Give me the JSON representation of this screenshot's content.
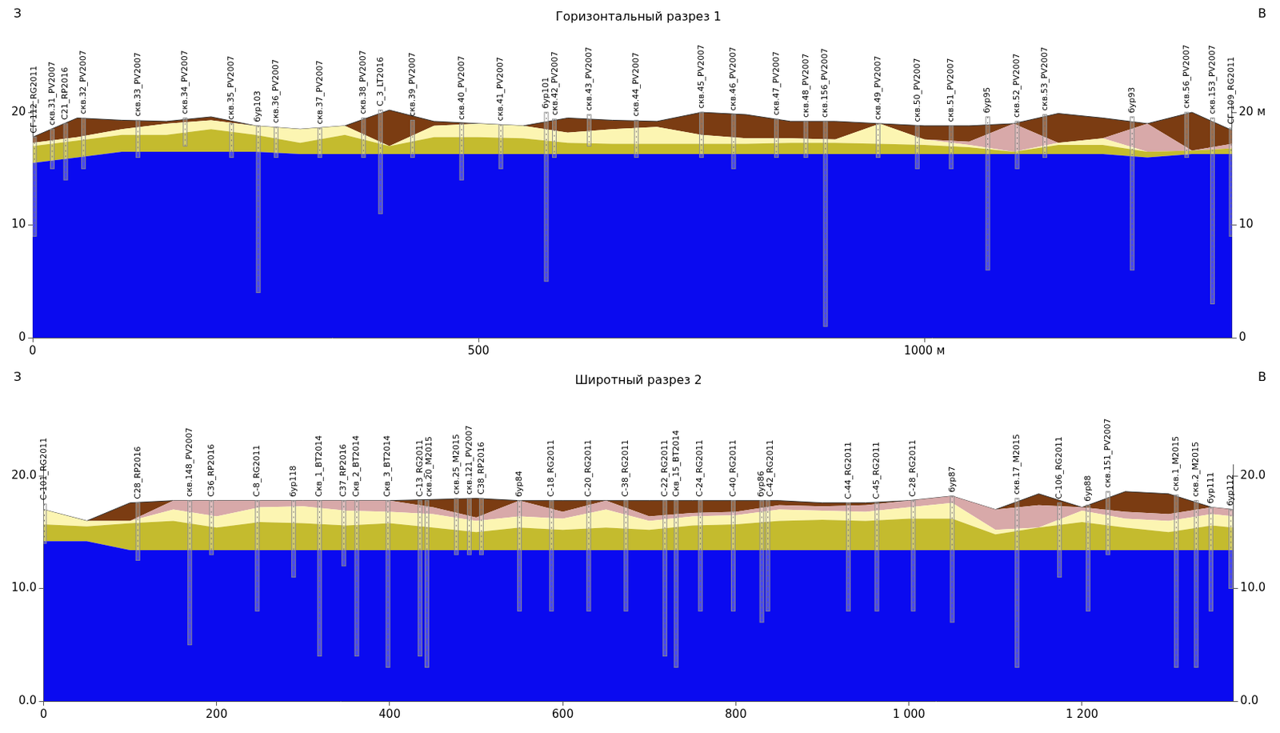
{
  "chart_data": [
    {
      "type": "area",
      "title": "Горизонтальный разрез 1",
      "left_label": "З",
      "right_label": "В",
      "stacked": true,
      "grid": false,
      "x": [
        0,
        50,
        100,
        150,
        200,
        250,
        300,
        350,
        400,
        450,
        500,
        550,
        600,
        650,
        700,
        750,
        800,
        850,
        900,
        950,
        1000,
        1050,
        1100,
        1150,
        1200,
        1250,
        1300,
        1345
      ],
      "series": [
        {
          "color": "#0a0af0",
          "values": [
            15.5,
            16,
            16.5,
            16.5,
            16.5,
            16.5,
            16.3,
            16.3,
            16.3,
            16.3,
            16.3,
            16.3,
            16.3,
            16.3,
            16.3,
            16.3,
            16.3,
            16.3,
            16.3,
            16.3,
            16.3,
            16.3,
            16.3,
            16.3,
            16.3,
            16.0,
            16.3,
            16.3
          ]
        },
        {
          "color": "#c4bb2e",
          "values": [
            1.5,
            1.5,
            1.5,
            1.5,
            2.0,
            1.5,
            1.0,
            1.7,
            0.7,
            1.5,
            1.5,
            1.4,
            1.0,
            0.9,
            0.9,
            0.9,
            0.9,
            1.0,
            1.0,
            0.9,
            0.8,
            0.6,
            0.2,
            0.8,
            0.8,
            0.5,
            0.3,
            0.5
          ]
        },
        {
          "color": "#fcf5b2",
          "values": [
            0.3,
            0.3,
            0.5,
            1.0,
            0.8,
            0.8,
            1.2,
            0.8,
            0,
            1.0,
            1.2,
            1.1,
            0.9,
            1.3,
            1.5,
            0.8,
            0.5,
            0.4,
            0.3,
            1.8,
            0.5,
            0.2,
            0,
            0.2,
            0.6,
            0,
            0,
            0
          ]
        },
        {
          "color": "#d8a9a9",
          "values": [
            0,
            0,
            0,
            0,
            0,
            0,
            0,
            0,
            0,
            0,
            0,
            0,
            0,
            0,
            0,
            0,
            0,
            0,
            0,
            0,
            0,
            0.3,
            2.5,
            0,
            0,
            2.5,
            0,
            0.4
          ]
        },
        {
          "color": "#7b3c12",
          "values": [
            0.5,
            1.7,
            0.8,
            0.2,
            0.3,
            0,
            0,
            0,
            3.2,
            0.4,
            0,
            0,
            1.3,
            0.8,
            0.5,
            2.0,
            2.1,
            1.5,
            1.6,
            0,
            1.2,
            1.4,
            0,
            2.6,
            1.8,
            0,
            3.4,
            1.2
          ]
        }
      ],
      "xlim": [
        0,
        1345
      ],
      "xticks": [
        0,
        500,
        {
          "value": 1000,
          "label": "1000 м"
        }
      ],
      "ylim": [
        0,
        21
      ],
      "yticks": [
        0,
        10,
        20
      ],
      "y2lim": [
        0,
        21
      ],
      "y2ticks": [
        0,
        10,
        {
          "value": 20,
          "label": "20 м"
        }
      ],
      "boreholes": [
        {
          "name": "СГ-112_RG2011",
          "x": 2,
          "top": 17.8,
          "bottom": 9
        },
        {
          "name": "скв.31_PV2007",
          "x": 22,
          "top": 18.5,
          "bottom": 15
        },
        {
          "name": "С21_RP2016",
          "x": 37,
          "top": 19,
          "bottom": 14
        },
        {
          "name": "скв.32_PV2007",
          "x": 57,
          "top": 19.5,
          "bottom": 15
        },
        {
          "name": "скв.33_PV2007",
          "x": 118,
          "top": 19.3,
          "bottom": 16
        },
        {
          "name": "скв.34_PV2007",
          "x": 171,
          "top": 19.5,
          "bottom": 17
        },
        {
          "name": "скв.35_PV2007",
          "x": 223,
          "top": 19,
          "bottom": 16
        },
        {
          "name": "бур103",
          "x": 253,
          "top": 18.8,
          "bottom": 4
        },
        {
          "name": "скв.36_PV2007",
          "x": 273,
          "top": 18.7,
          "bottom": 16
        },
        {
          "name": "скв.37_PV2007",
          "x": 322,
          "top": 18.6,
          "bottom": 16
        },
        {
          "name": "скв.38_PV2007",
          "x": 371,
          "top": 19.5,
          "bottom": 16
        },
        {
          "name": "С_3_LT2016",
          "x": 390,
          "top": 20.2,
          "bottom": 11
        },
        {
          "name": "скв.39_PV2007",
          "x": 426,
          "top": 19.3,
          "bottom": 16
        },
        {
          "name": "скв.40_PV2007",
          "x": 481,
          "top": 19,
          "bottom": 14
        },
        {
          "name": "скв.41_PV2007",
          "x": 525,
          "top": 18.9,
          "bottom": 15
        },
        {
          "name": "бур101",
          "x": 576,
          "top": 20,
          "bottom": 5
        },
        {
          "name": "скв.42_PV2007",
          "x": 585,
          "top": 19.4,
          "bottom": 16
        },
        {
          "name": "скв.43_PV2007",
          "x": 624,
          "top": 19.8,
          "bottom": 17
        },
        {
          "name": "скв.44_PV2007",
          "x": 677,
          "top": 19.3,
          "bottom": 16
        },
        {
          "name": "скв.45_PV2007",
          "x": 750,
          "top": 20,
          "bottom": 16
        },
        {
          "name": "скв.46_PV2007",
          "x": 786,
          "top": 19.8,
          "bottom": 15
        },
        {
          "name": "скв.47_PV2007",
          "x": 834,
          "top": 19.4,
          "bottom": 16
        },
        {
          "name": "скв.48_PV2007",
          "x": 867,
          "top": 19.2,
          "bottom": 16
        },
        {
          "name": "скв.156_PV2007",
          "x": 889,
          "top": 19.2,
          "bottom": 1
        },
        {
          "name": "скв.49_PV2007",
          "x": 948,
          "top": 19,
          "bottom": 16
        },
        {
          "name": "скв.50_PV2007",
          "x": 992,
          "top": 18.8,
          "bottom": 15
        },
        {
          "name": "скв.51_PV2007",
          "x": 1030,
          "top": 18.8,
          "bottom": 15
        },
        {
          "name": "бур95",
          "x": 1071,
          "top": 19.6,
          "bottom": 6
        },
        {
          "name": "скв.52_PV2007",
          "x": 1104,
          "top": 19.2,
          "bottom": 15
        },
        {
          "name": "скв.53_PV2007",
          "x": 1135,
          "top": 19.8,
          "bottom": 16
        },
        {
          "name": "бур93",
          "x": 1233,
          "top": 19.6,
          "bottom": 6
        },
        {
          "name": "скв.56_PV2007",
          "x": 1294,
          "top": 20,
          "bottom": 16
        },
        {
          "name": "скв.153_PV2007",
          "x": 1323,
          "top": 19.5,
          "bottom": 3
        },
        {
          "name": "СГ-109_RG2011",
          "x": 1344,
          "top": 18.6,
          "bottom": 9
        }
      ]
    },
    {
      "type": "area",
      "title": "Широтный разрез 2",
      "left_label": "З",
      "right_label": "В",
      "stacked": true,
      "grid": false,
      "x": [
        0,
        50,
        100,
        150,
        200,
        250,
        300,
        350,
        400,
        450,
        500,
        550,
        600,
        650,
        700,
        750,
        800,
        850,
        900,
        950,
        1000,
        1050,
        1100,
        1150,
        1200,
        1250,
        1300,
        1350,
        1375
      ],
      "series": [
        {
          "color": "#0a0af0",
          "values": [
            14.2,
            14.2,
            13.4,
            13.4,
            13.4,
            13.4,
            13.4,
            13.4,
            13.4,
            13.4,
            13.4,
            13.4,
            13.4,
            13.4,
            13.4,
            13.4,
            13.4,
            13.4,
            13.4,
            13.4,
            13.4,
            13.4,
            13.4,
            13.4,
            13.4,
            13.4,
            13.4,
            13.4,
            13.4
          ]
        },
        {
          "color": "#c4bb2e",
          "values": [
            1.5,
            1.3,
            2.4,
            2.6,
            2.0,
            2.5,
            2.4,
            2.2,
            2.4,
            2.0,
            1.6,
            2.0,
            1.8,
            2.0,
            1.8,
            2.2,
            2.3,
            2.6,
            2.7,
            2.6,
            2.8,
            2.8,
            1.4,
            2.0,
            2.5,
            2.0,
            1.6,
            2.2,
            2.0
          ]
        },
        {
          "color": "#fcf5b2",
          "values": [
            1.3,
            0.5,
            0.2,
            1.0,
            1.0,
            1.3,
            1.5,
            1.3,
            1.0,
            1.2,
            1.0,
            1.0,
            1.0,
            1.6,
            0.8,
            0.8,
            0.8,
            1.0,
            0.8,
            0.8,
            1.0,
            1.4,
            0.4,
            0,
            1.0,
            0.8,
            1.0,
            1.0,
            1.0
          ]
        },
        {
          "color": "#d8a9a9",
          "values": [
            0,
            0,
            0,
            0.8,
            1.4,
            0.6,
            0.5,
            0.9,
            1.0,
            0.6,
            0.3,
            1.4,
            0.6,
            0.8,
            0.4,
            0.3,
            0.3,
            0.4,
            0.4,
            0.6,
            0.6,
            0.6,
            1.8,
            2.0,
            0.3,
            0.6,
            0.6,
            0.6,
            0.6
          ]
        },
        {
          "color": "#7b3c12",
          "values": [
            0,
            0,
            1.6,
            0,
            0,
            0,
            0,
            0,
            0,
            0.7,
            1.7,
            0,
            1.0,
            0,
            1.4,
            1.1,
            1.0,
            0.4,
            0.3,
            0.2,
            0,
            0,
            0,
            1.0,
            0,
            1.8,
            1.8,
            0,
            0
          ]
        }
      ],
      "xlim": [
        0,
        1375
      ],
      "xticks": [
        0,
        200,
        400,
        600,
        800,
        {
          "value": 1000,
          "label": "1 000"
        },
        {
          "value": 1200,
          "label": "1 200"
        }
      ],
      "ylim": [
        0,
        21
      ],
      "yticks": [
        {
          "value": 0,
          "label": "0.0"
        },
        {
          "value": 10,
          "label": "10.0"
        },
        {
          "value": 20,
          "label": "20.0"
        }
      ],
      "y2lim": [
        0,
        21
      ],
      "y2ticks": [
        {
          "value": 0,
          "label": "0.0"
        },
        {
          "value": 10,
          "label": "10.0"
        },
        {
          "value": 20,
          "label": "20.0"
        }
      ],
      "boreholes": [
        {
          "name": "С-101_RG2011",
          "x": 1,
          "top": 17.5,
          "bottom": 14
        },
        {
          "name": "С28_RP2016",
          "x": 109,
          "top": 17.6,
          "bottom": 12.5
        },
        {
          "name": "скв.148_PV2007",
          "x": 169,
          "top": 17.8,
          "bottom": 5
        },
        {
          "name": "С36_RP2016",
          "x": 194,
          "top": 17.8,
          "bottom": 13
        },
        {
          "name": "С-8_RG2011",
          "x": 247,
          "top": 17.8,
          "bottom": 8
        },
        {
          "name": "бур118",
          "x": 289,
          "top": 17.8,
          "bottom": 11
        },
        {
          "name": "Скв_1_BT2014",
          "x": 319,
          "top": 17.8,
          "bottom": 4
        },
        {
          "name": "С37_RP2016",
          "x": 347,
          "top": 17.8,
          "bottom": 12
        },
        {
          "name": "Скв_2_BT2014",
          "x": 362,
          "top": 17.8,
          "bottom": 4
        },
        {
          "name": "Скв_3_BT2014",
          "x": 398,
          "top": 17.8,
          "bottom": 3
        },
        {
          "name": "С-13_RG2011",
          "x": 435,
          "top": 17.8,
          "bottom": 4
        },
        {
          "name": "скв.20_M2015",
          "x": 443,
          "top": 17.8,
          "bottom": 3
        },
        {
          "name": "скв.25_M2015",
          "x": 477,
          "top": 18,
          "bottom": 13
        },
        {
          "name": "скв.121_PV2007",
          "x": 492,
          "top": 18,
          "bottom": 13
        },
        {
          "name": "С38_RP2016",
          "x": 506,
          "top": 18,
          "bottom": 13
        },
        {
          "name": "бур84",
          "x": 550,
          "top": 17.8,
          "bottom": 8
        },
        {
          "name": "С-18_RG2011",
          "x": 587,
          "top": 17.8,
          "bottom": 8
        },
        {
          "name": "С-20_RG2011",
          "x": 630,
          "top": 17.8,
          "bottom": 8
        },
        {
          "name": "С-38_RG2011",
          "x": 673,
          "top": 17.8,
          "bottom": 8
        },
        {
          "name": "С-22_RG2011",
          "x": 718,
          "top": 17.8,
          "bottom": 4
        },
        {
          "name": "Скв_15_BT2014",
          "x": 731,
          "top": 17.8,
          "bottom": 3
        },
        {
          "name": "С-24_RG2011",
          "x": 759,
          "top": 17.8,
          "bottom": 8
        },
        {
          "name": "С-40_RG2011",
          "x": 797,
          "top": 17.8,
          "bottom": 8
        },
        {
          "name": "бур86",
          "x": 830,
          "top": 17.8,
          "bottom": 7
        },
        {
          "name": "С-42_RG2011",
          "x": 837,
          "top": 17.8,
          "bottom": 8
        },
        {
          "name": "С-44_RG2011",
          "x": 930,
          "top": 17.6,
          "bottom": 8
        },
        {
          "name": "С-45_RG2011",
          "x": 963,
          "top": 17.6,
          "bottom": 8
        },
        {
          "name": "С-28_RG2011",
          "x": 1005,
          "top": 17.8,
          "bottom": 8
        },
        {
          "name": "бур87",
          "x": 1050,
          "top": 18.2,
          "bottom": 7
        },
        {
          "name": "скв.17_M2015",
          "x": 1125,
          "top": 18,
          "bottom": 3
        },
        {
          "name": "С-106_RG2011",
          "x": 1174,
          "top": 17.6,
          "bottom": 11
        },
        {
          "name": "бур88",
          "x": 1207,
          "top": 17.4,
          "bottom": 8
        },
        {
          "name": "скв.151_PV2007",
          "x": 1230,
          "top": 18.6,
          "bottom": 13
        },
        {
          "name": "скв.1_M2015",
          "x": 1309,
          "top": 18.3,
          "bottom": 3
        },
        {
          "name": "скв.2_M2015",
          "x": 1332,
          "top": 17.8,
          "bottom": 3
        },
        {
          "name": "бур111",
          "x": 1349,
          "top": 17.2,
          "bottom": 8
        },
        {
          "name": "бур112",
          "x": 1372,
          "top": 17,
          "bottom": 10
        }
      ]
    }
  ]
}
